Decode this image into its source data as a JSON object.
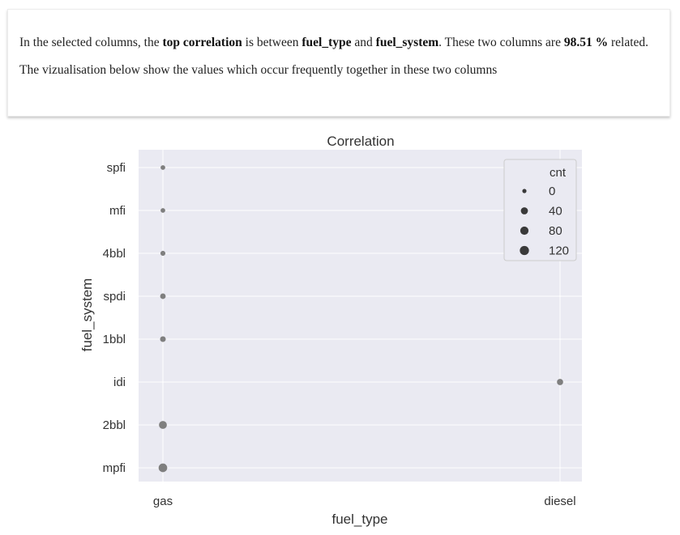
{
  "summary": {
    "p1_pre": "In the selected columns, the ",
    "p1_bold1": "top correlation",
    "p1_mid1": " is between ",
    "p1_bold2": "fuel_type",
    "p1_mid2": " and ",
    "p1_bold3": "fuel_system",
    "p1_mid3": ". These two columns are ",
    "p1_bold4": "98.51 %",
    "p1_post": " related.",
    "p2": "The vizualisation below show the values which occur frequently together in these two columns"
  },
  "chart_data": {
    "type": "scatter",
    "title": "Correlation",
    "xlabel": "fuel_type",
    "ylabel": "fuel_system",
    "x_categories": [
      "gas",
      "diesel"
    ],
    "y_categories": [
      "spfi",
      "mfi",
      "4bbl",
      "spdi",
      "1bbl",
      "idi",
      "2bbl",
      "mpfi"
    ],
    "points": [
      {
        "x": "gas",
        "y": "spfi",
        "cnt": 1
      },
      {
        "x": "gas",
        "y": "mfi",
        "cnt": 1
      },
      {
        "x": "gas",
        "y": "4bbl",
        "cnt": 3
      },
      {
        "x": "gas",
        "y": "spdi",
        "cnt": 9
      },
      {
        "x": "gas",
        "y": "1bbl",
        "cnt": 11
      },
      {
        "x": "diesel",
        "y": "idi",
        "cnt": 20
      },
      {
        "x": "gas",
        "y": "2bbl",
        "cnt": 66
      },
      {
        "x": "gas",
        "y": "mpfi",
        "cnt": 94
      }
    ],
    "size_legend": {
      "title": "cnt",
      "entries": [
        0,
        40,
        80,
        120
      ],
      "placement": "top-right"
    },
    "marker_color": "#7f7f7f",
    "legend_marker_color": "#3a3a3a",
    "plot_background": "#eaeaf2",
    "grid": true
  }
}
